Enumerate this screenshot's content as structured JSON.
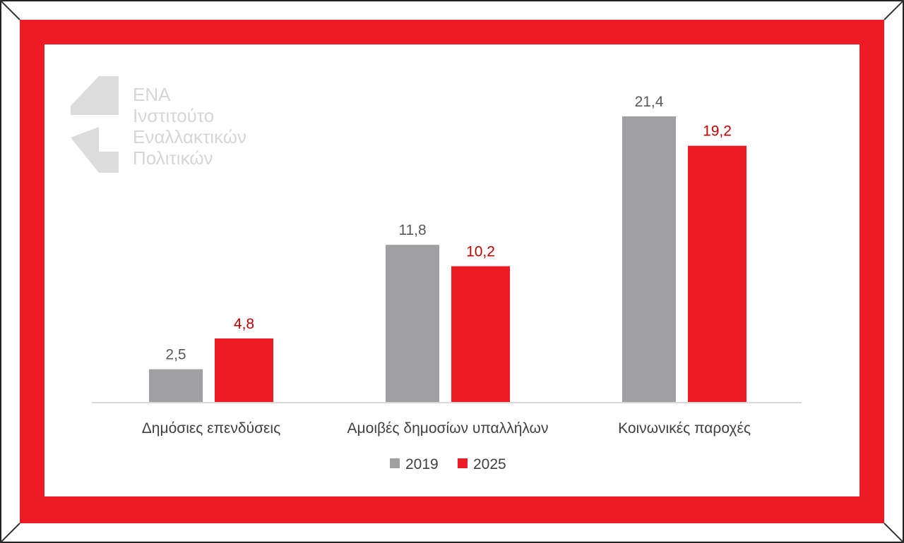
{
  "logo": {
    "lines": [
      "ΕΝΑ",
      "Ινστιτούτο",
      "Εναλλακτικών",
      "Πολιτικών"
    ]
  },
  "colors": {
    "frame_red": "#ED1C24",
    "series_2019": "#A09FA2",
    "series_2025": "#ED1C24",
    "label_2019": "#595959",
    "label_2025": "#C00000",
    "axis_text": "#404040",
    "logo_gray": "#D9D9D9"
  },
  "chart_data": {
    "type": "bar",
    "title": "",
    "xlabel": "",
    "ylabel": "",
    "categories": [
      "Δημόσιες επενδύσεις",
      "Αμοιβές δημοσίων υπαλλήλων",
      "Κοινωνικές παροχές"
    ],
    "series": [
      {
        "name": "2019",
        "values": [
          2.5,
          11.8,
          21.4
        ],
        "labels": [
          "2,5",
          "11,8",
          "21,4"
        ]
      },
      {
        "name": "2025",
        "values": [
          4.8,
          10.2,
          19.2
        ],
        "labels": [
          "4,8",
          "10,2",
          "19,2"
        ]
      }
    ],
    "ylim": [
      0,
      21.4
    ],
    "grid": false,
    "legend": "bottom"
  }
}
